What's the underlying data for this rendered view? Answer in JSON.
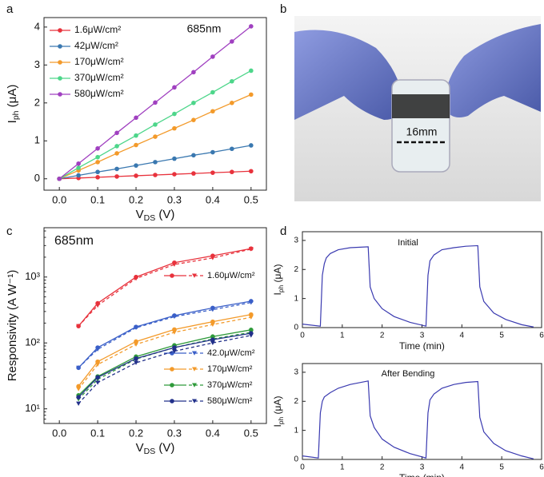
{
  "chart_data": [
    {
      "type": "line",
      "panel": "a",
      "annotation": "685nm",
      "xlabel": {
        "text": "V",
        "sub": "DS",
        "suffix": " (V)"
      },
      "ylabel": {
        "text": "I",
        "sub": "ph",
        "suffix": " (μA)"
      },
      "x": [
        0,
        0.05,
        0.1,
        0.15,
        0.2,
        0.25,
        0.3,
        0.35,
        0.4,
        0.45,
        0.5
      ],
      "xlim": [
        -0.04,
        0.54
      ],
      "xticks": [
        {
          "value": 0,
          "label": "0.0"
        },
        0.1,
        0.2,
        0.3,
        0.4,
        0.5
      ],
      "ylim": [
        -0.3,
        4.25
      ],
      "yticks": [
        0,
        1,
        2,
        3,
        4
      ],
      "series": [
        {
          "name": "1.6μW/cm²",
          "color": "#e8323c",
          "values": [
            0,
            0.02,
            0.04,
            0.06,
            0.08,
            0.1,
            0.12,
            0.14,
            0.16,
            0.18,
            0.2
          ]
        },
        {
          "name": "42μW/cm²",
          "color": "#3a78b0",
          "values": [
            0,
            0.09,
            0.18,
            0.26,
            0.35,
            0.44,
            0.53,
            0.62,
            0.7,
            0.79,
            0.88
          ]
        },
        {
          "name": "170μW/cm²",
          "color": "#f39a2a",
          "values": [
            0,
            0.22,
            0.44,
            0.67,
            0.89,
            1.11,
            1.33,
            1.55,
            1.78,
            2.0,
            2.22
          ]
        },
        {
          "name": "370μW/cm²",
          "color": "#4dd68a",
          "values": [
            0,
            0.29,
            0.57,
            0.86,
            1.14,
            1.43,
            1.71,
            2.0,
            2.28,
            2.57,
            2.85
          ]
        },
        {
          "name": "580μW/cm²",
          "color": "#a040c0",
          "values": [
            0,
            0.4,
            0.8,
            1.21,
            1.61,
            2.01,
            2.41,
            2.81,
            3.22,
            3.62,
            4.02
          ]
        }
      ]
    },
    {
      "type": "image",
      "panel": "b",
      "annotation": "16mm"
    },
    {
      "type": "line",
      "panel": "c",
      "annotation": "685nm",
      "log_y": true,
      "xlabel": {
        "text": "V",
        "sub": "DS",
        "suffix": " (V)"
      },
      "ylabel": "Responsivity (A W⁻¹)",
      "x": [
        0.05,
        0.1,
        0.2,
        0.3,
        0.4,
        0.5
      ],
      "xlim": [
        -0.04,
        0.54
      ],
      "xticks": [
        {
          "value": 0,
          "label": "0.0"
        },
        0.1,
        0.2,
        0.3,
        0.4,
        0.5
      ],
      "ylim": [
        6,
        5600
      ],
      "yticks": [
        {
          "value": 10,
          "label": "10¹"
        },
        {
          "value": 100,
          "label": "10²"
        },
        {
          "value": 1000,
          "label": "10³"
        }
      ],
      "series": [
        {
          "name": "1.60μW/cm²",
          "color": "#e8323c",
          "values": [
            180,
            400,
            1000,
            1650,
            2100,
            2700
          ],
          "values_dashed": [
            180,
            370,
            950,
            1550,
            1950,
            2650
          ]
        },
        {
          "name": "42.0μW/cm²",
          "color": "#3a5fc8",
          "values": [
            42,
            85,
            175,
            260,
            340,
            430
          ],
          "values_dashed": [
            42,
            80,
            170,
            250,
            320,
            410
          ]
        },
        {
          "name": "170μW/cm²",
          "color": "#f39a2a",
          "values": [
            22,
            52,
            105,
            160,
            210,
            270
          ],
          "values_dashed": [
            20,
            47,
            95,
            145,
            190,
            245
          ]
        },
        {
          "name": "370μW/cm²",
          "color": "#2e9a3a",
          "values": [
            16,
            31,
            62,
            92,
            125,
            158
          ],
          "values_dashed": [
            14,
            28,
            57,
            85,
            115,
            145
          ]
        },
        {
          "name": "580μW/cm²",
          "color": "#22308a",
          "values": [
            15,
            30,
            58,
            85,
            112,
            140
          ],
          "values_dashed": [
            12,
            25,
            50,
            75,
            100,
            130
          ]
        }
      ]
    },
    {
      "type": "line",
      "panel": "d",
      "annotation": "Initial",
      "xlabel": "Time (min)",
      "ylabel": {
        "text": "I",
        "sub": "ph",
        "suffix": " (μA)"
      },
      "x": [
        0,
        0.45,
        0.5,
        0.55,
        0.6,
        0.7,
        0.9,
        1.2,
        1.65,
        1.7,
        1.8,
        2,
        2.3,
        2.7,
        3.1,
        3.15,
        3.2,
        3.3,
        3.5,
        3.8,
        4.1,
        4.4,
        4.45,
        4.55,
        4.8,
        5.1,
        5.5,
        5.8
      ],
      "xlim": [
        0,
        6
      ],
      "xticks": [
        0,
        1,
        2,
        3,
        4,
        5,
        6
      ],
      "ylim": [
        0,
        3.3
      ],
      "yticks": [
        0,
        1,
        2,
        3
      ],
      "series": [
        {
          "color": "#3a3ab0",
          "values": [
            0.12,
            0.05,
            1.8,
            2.2,
            2.4,
            2.55,
            2.68,
            2.75,
            2.78,
            1.4,
            1.0,
            0.65,
            0.38,
            0.18,
            0.05,
            1.8,
            2.3,
            2.5,
            2.68,
            2.75,
            2.8,
            2.82,
            1.4,
            0.9,
            0.5,
            0.28,
            0.1,
            0.02
          ]
        }
      ]
    },
    {
      "type": "line",
      "annotation": "After Bending",
      "xlabel": "Time (min)",
      "ylabel": {
        "text": "I",
        "sub": "ph",
        "suffix": " (μA)"
      },
      "x": [
        0,
        0.4,
        0.45,
        0.5,
        0.55,
        0.7,
        0.9,
        1.2,
        1.65,
        1.7,
        1.8,
        2,
        2.3,
        2.7,
        3.1,
        3.15,
        3.2,
        3.3,
        3.5,
        3.8,
        4.1,
        4.4,
        4.45,
        4.55,
        4.8,
        5.1,
        5.5,
        5.8
      ],
      "xlim": [
        0,
        6
      ],
      "xticks": [
        0,
        1,
        2,
        3,
        4,
        5,
        6
      ],
      "ylim": [
        0,
        3.3
      ],
      "yticks": [
        0,
        1,
        2,
        3
      ],
      "series": [
        {
          "color": "#3a3ab0",
          "values": [
            0.12,
            0.05,
            1.6,
            2.0,
            2.15,
            2.3,
            2.45,
            2.58,
            2.7,
            1.5,
            1.1,
            0.7,
            0.42,
            0.2,
            0.05,
            1.6,
            2.05,
            2.25,
            2.45,
            2.58,
            2.65,
            2.68,
            1.45,
            0.95,
            0.55,
            0.3,
            0.12,
            0.02
          ]
        }
      ]
    }
  ]
}
